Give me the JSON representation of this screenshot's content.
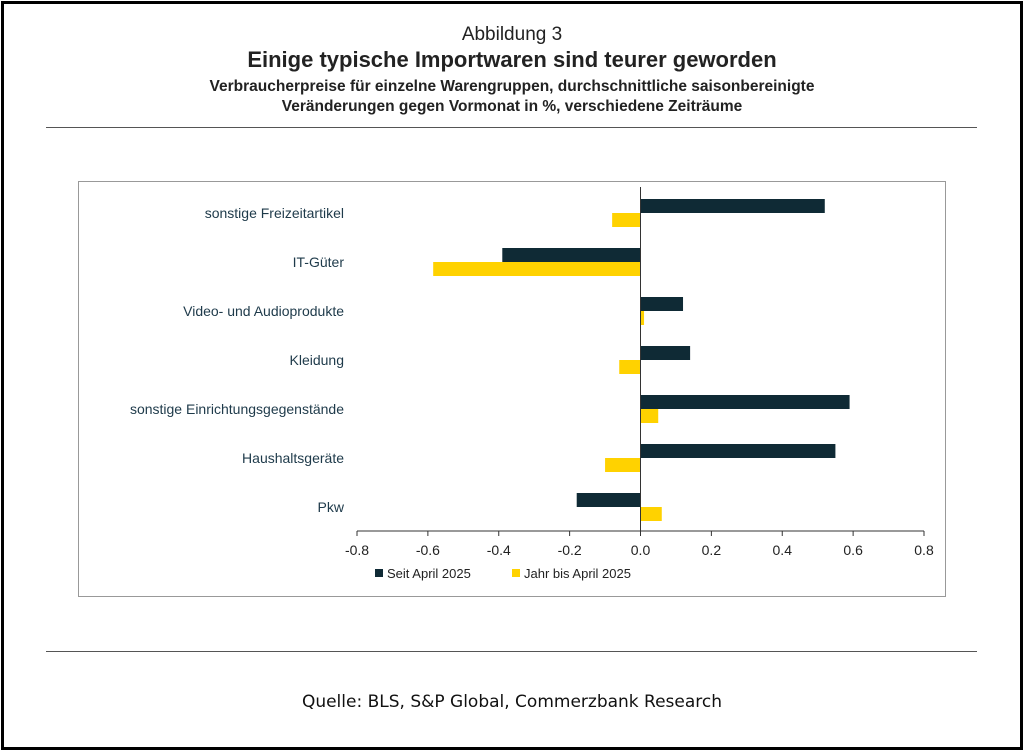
{
  "header": {
    "figure_label": "Abbildung 3",
    "title": "Einige typische Importwaren sind teurer geworden",
    "subtitle_line1": "Verbraucherpreise für einzelne Warengruppen, durchschnittliche saisonbereinigte",
    "subtitle_line2": "Veränderungen gegen Vormonat in %, verschiedene Zeiträume"
  },
  "chart_data": {
    "type": "bar",
    "orientation": "horizontal",
    "categories": [
      "sonstige Freizeitartikel",
      "IT-Güter",
      "Video- und Audioprodukte",
      "Kleidung",
      "sonstige Einrichtungsgegenstände",
      "Haushaltsgeräte",
      "Pkw"
    ],
    "series": [
      {
        "name": "Seit April 2025",
        "color": "#0f2a35",
        "values": [
          0.52,
          -0.39,
          0.12,
          0.14,
          0.59,
          0.55,
          -0.18
        ]
      },
      {
        "name": "Jahr bis April 2025",
        "color": "#ffd200",
        "values": [
          -0.08,
          -0.585,
          0.01,
          -0.06,
          0.05,
          -0.1,
          0.06
        ]
      }
    ],
    "xlim": [
      -0.8,
      0.8
    ],
    "xticks": [
      "-0.8",
      "-0.6",
      "-0.4",
      "-0.2",
      "0.0",
      "0.2",
      "0.4",
      "0.6",
      "0.8"
    ],
    "legend_position": "bottom",
    "grid": false
  },
  "footer": {
    "source": "Quelle: BLS, S&P Global, Commerzbank Research"
  }
}
